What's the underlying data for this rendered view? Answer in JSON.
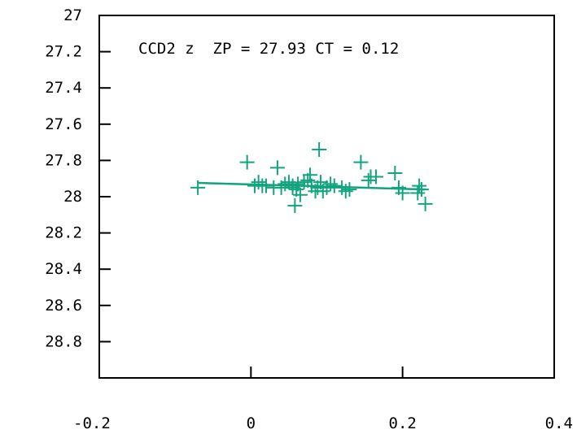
{
  "chart_data": {
    "type": "scatter",
    "title": "CCD2 z  ZP = 27.93 CT = 0.12",
    "xlabel": "",
    "ylabel": "",
    "xlim": [
      -0.2,
      0.4
    ],
    "ylim": [
      29.0,
      27.0
    ],
    "y_inverted": true,
    "grid": false,
    "x_ticks": [
      -0.2,
      0,
      0.2,
      0.4
    ],
    "x_tick_labels": [
      "-0.2",
      "0",
      "0.2",
      "0.4"
    ],
    "y_ticks": [
      27.0,
      27.2,
      27.4,
      27.6,
      27.8,
      28.0,
      28.2,
      28.4,
      28.6,
      28.8
    ],
    "y_tick_labels": [
      "27",
      "27.2",
      "27.4",
      "27.6",
      "27.8",
      "28",
      "28.2",
      "28.4",
      "28.6",
      "28.8"
    ],
    "colors": {
      "series": "#12a37f",
      "axes": "#000000"
    },
    "marker": "plus",
    "series": [
      {
        "values": [
          [
            -0.07,
            27.95
          ],
          [
            -0.005,
            27.81
          ],
          [
            0.005,
            27.94
          ],
          [
            0.01,
            27.92
          ],
          [
            0.015,
            27.94
          ],
          [
            0.02,
            27.94
          ],
          [
            0.03,
            27.95
          ],
          [
            0.035,
            27.84
          ],
          [
            0.04,
            27.95
          ],
          [
            0.045,
            27.93
          ],
          [
            0.05,
            27.92
          ],
          [
            0.055,
            27.95
          ],
          [
            0.055,
            27.94
          ],
          [
            0.058,
            28.05
          ],
          [
            0.06,
            27.96
          ],
          [
            0.062,
            27.93
          ],
          [
            0.065,
            27.99
          ],
          [
            0.07,
            27.92
          ],
          [
            0.075,
            27.91
          ],
          [
            0.078,
            27.88
          ],
          [
            0.08,
            27.94
          ],
          [
            0.085,
            27.97
          ],
          [
            0.088,
            27.95
          ],
          [
            0.09,
            27.74
          ],
          [
            0.092,
            27.92
          ],
          [
            0.095,
            27.97
          ],
          [
            0.1,
            27.95
          ],
          [
            0.105,
            27.93
          ],
          [
            0.11,
            27.94
          ],
          [
            0.12,
            27.95
          ],
          [
            0.125,
            27.97
          ],
          [
            0.13,
            27.96
          ],
          [
            0.145,
            27.81
          ],
          [
            0.155,
            27.91
          ],
          [
            0.158,
            27.89
          ],
          [
            0.165,
            27.89
          ],
          [
            0.19,
            27.87
          ],
          [
            0.195,
            27.95
          ],
          [
            0.2,
            27.98
          ],
          [
            0.22,
            27.98
          ],
          [
            0.222,
            27.94
          ],
          [
            0.225,
            27.96
          ],
          [
            0.23,
            28.04
          ]
        ]
      }
    ],
    "fit_line": {
      "x": [
        -0.07,
        0.23
      ],
      "y": [
        27.924,
        27.96
      ]
    }
  }
}
